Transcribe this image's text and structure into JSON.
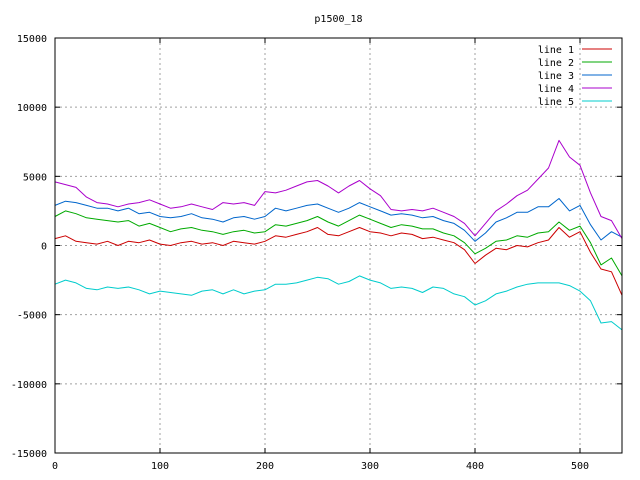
{
  "chart_data": {
    "type": "line",
    "title": "p1500_18",
    "xlabel": "",
    "ylabel": "",
    "xlim": [
      0,
      540
    ],
    "ylim": [
      -15000,
      15000
    ],
    "grid": true,
    "legend_position": "top-right",
    "x_ticks": [
      0,
      100,
      200,
      300,
      400,
      500
    ],
    "y_ticks": [
      -15000,
      -10000,
      -5000,
      0,
      5000,
      10000,
      15000
    ],
    "x_tick_labels": [
      "0",
      "100",
      "200",
      "300",
      "400",
      "500"
    ],
    "y_tick_labels": [
      "-15000",
      "-10000",
      "-5000",
      "0",
      "5000",
      "10000",
      "15000"
    ],
    "x": [
      0,
      10,
      20,
      30,
      40,
      50,
      60,
      70,
      80,
      90,
      100,
      110,
      120,
      130,
      140,
      150,
      160,
      170,
      180,
      190,
      200,
      210,
      220,
      230,
      240,
      250,
      260,
      270,
      280,
      290,
      300,
      310,
      320,
      330,
      340,
      350,
      360,
      370,
      380,
      390,
      400,
      410,
      420,
      430,
      440,
      450,
      460,
      470,
      480,
      490,
      500,
      510,
      520,
      530,
      540
    ],
    "series": [
      {
        "name": "line 1",
        "color": "#cc0000",
        "values": [
          500,
          700,
          300,
          200,
          100,
          300,
          0,
          300,
          200,
          400,
          100,
          0,
          200,
          300,
          100,
          200,
          0,
          300,
          200,
          100,
          300,
          700,
          600,
          800,
          1000,
          1300,
          800,
          700,
          1000,
          1300,
          1000,
          900,
          700,
          900,
          800,
          500,
          600,
          400,
          200,
          -300,
          -1300,
          -700,
          -200,
          -300,
          0,
          -100,
          200,
          400,
          1300,
          600,
          1000,
          -500,
          -1700,
          -1900,
          -3600
        ]
      },
      {
        "name": "line 2",
        "color": "#00aa00",
        "values": [
          2100,
          2500,
          2300,
          2000,
          1900,
          1800,
          1700,
          1800,
          1400,
          1600,
          1300,
          1000,
          1200,
          1300,
          1100,
          1000,
          800,
          1000,
          1100,
          900,
          1000,
          1500,
          1400,
          1600,
          1800,
          2100,
          1700,
          1400,
          1800,
          2200,
          1900,
          1600,
          1300,
          1500,
          1400,
          1200,
          1200,
          900,
          700,
          200,
          -600,
          -200,
          300,
          400,
          700,
          600,
          900,
          1000,
          1700,
          1100,
          1400,
          200,
          -1400,
          -900,
          -2200
        ]
      },
      {
        "name": "line 3",
        "color": "#0066cc",
        "values": [
          2900,
          3200,
          3100,
          2900,
          2700,
          2700,
          2500,
          2700,
          2300,
          2400,
          2100,
          2000,
          2100,
          2300,
          2000,
          1900,
          1700,
          2000,
          2100,
          1900,
          2100,
          2700,
          2500,
          2700,
          2900,
          3000,
          2700,
          2400,
          2700,
          3100,
          2800,
          2500,
          2200,
          2300,
          2200,
          2000,
          2100,
          1800,
          1600,
          1100,
          300,
          900,
          1700,
          2000,
          2400,
          2400,
          2800,
          2800,
          3400,
          2500,
          2900,
          1500,
          400,
          1000,
          600
        ]
      },
      {
        "name": "line 4",
        "color": "#aa00cc",
        "values": [
          4600,
          4400,
          4200,
          3500,
          3100,
          3000,
          2800,
          3000,
          3100,
          3300,
          3000,
          2700,
          2800,
          3000,
          2800,
          2600,
          3100,
          3000,
          3100,
          2900,
          3900,
          3800,
          4000,
          4300,
          4600,
          4700,
          4300,
          3800,
          4300,
          4700,
          4100,
          3600,
          2600,
          2500,
          2600,
          2500,
          2700,
          2400,
          2100,
          1600,
          700,
          1600,
          2500,
          3000,
          3600,
          4000,
          4800,
          5600,
          7600,
          6400,
          5800,
          3800,
          2100,
          1800,
          500
        ]
      },
      {
        "name": "line 5",
        "color": "#00cccc",
        "values": [
          -2800,
          -2500,
          -2700,
          -3100,
          -3200,
          -3000,
          -3100,
          -3000,
          -3200,
          -3500,
          -3300,
          -3400,
          -3500,
          -3600,
          -3300,
          -3200,
          -3500,
          -3200,
          -3500,
          -3300,
          -3200,
          -2800,
          -2800,
          -2700,
          -2500,
          -2300,
          -2400,
          -2800,
          -2600,
          -2200,
          -2500,
          -2700,
          -3100,
          -3000,
          -3100,
          -3400,
          -3000,
          -3100,
          -3500,
          -3700,
          -4300,
          -4000,
          -3500,
          -3300,
          -3000,
          -2800,
          -2700,
          -2700,
          -2700,
          -2900,
          -3300,
          -4000,
          -5600,
          -5500,
          -6100
        ]
      }
    ]
  }
}
